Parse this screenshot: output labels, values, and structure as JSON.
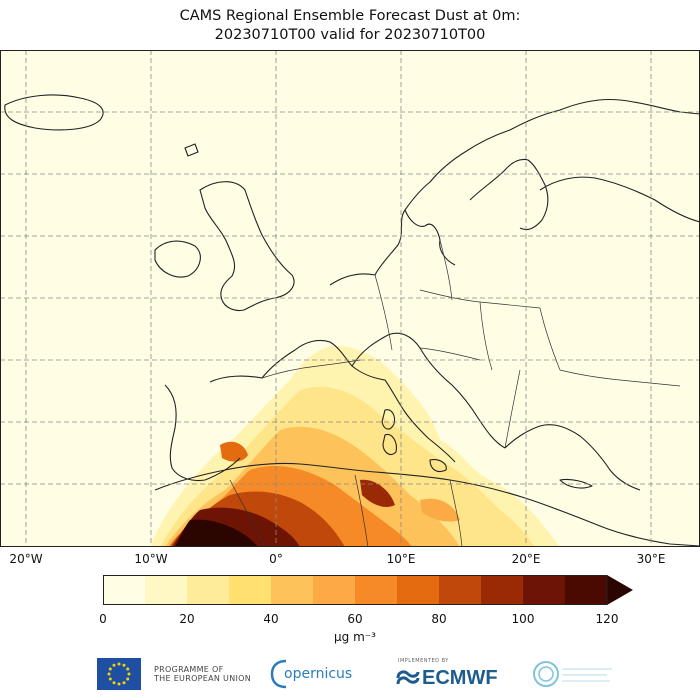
{
  "title": {
    "line1": "CAMS Regional Ensemble Forecast Dust at 0m:",
    "line2": "20230710T00 valid for 20230710T00"
  },
  "map": {
    "extent_lon": [
      -25,
      35
    ],
    "extent_lat": [
      28,
      70
    ],
    "gridlines": true,
    "lon_ticks": [
      "20°W",
      "10°W",
      "0°",
      "10°E",
      "20°E",
      "30°E"
    ],
    "lon_tick_values": [
      -20,
      -10,
      0,
      10,
      20,
      30
    ],
    "field": "Dust concentration at 0m",
    "max_concentration_region": "North Africa (Morocco / Algeria)",
    "land_color": "#fffde4",
    "sea_color": "#fffde4"
  },
  "colorbar": {
    "ticks": [
      "0",
      "20",
      "40",
      "60",
      "80",
      "100",
      "120"
    ],
    "tick_values": [
      0,
      20,
      40,
      60,
      80,
      100,
      120
    ],
    "extend": "max",
    "unit": "µg m⁻³",
    "colors": [
      "#fffde4",
      "#fff7c4",
      "#ffec9a",
      "#ffe070",
      "#fdc35a",
      "#fbaa46",
      "#f68a26",
      "#e36c10",
      "#c0480a",
      "#9a2a06",
      "#6e1404",
      "#4a0a02",
      "#2b0500"
    ]
  },
  "footer": {
    "eu_text_line1": "PROGRAMME OF",
    "eu_text_line2": "THE EUROPEAN UNION",
    "copernicus": "opernicus",
    "ecmwf_caption": "IMPLEMENTED BY",
    "ecmwf": "ECMWF"
  }
}
